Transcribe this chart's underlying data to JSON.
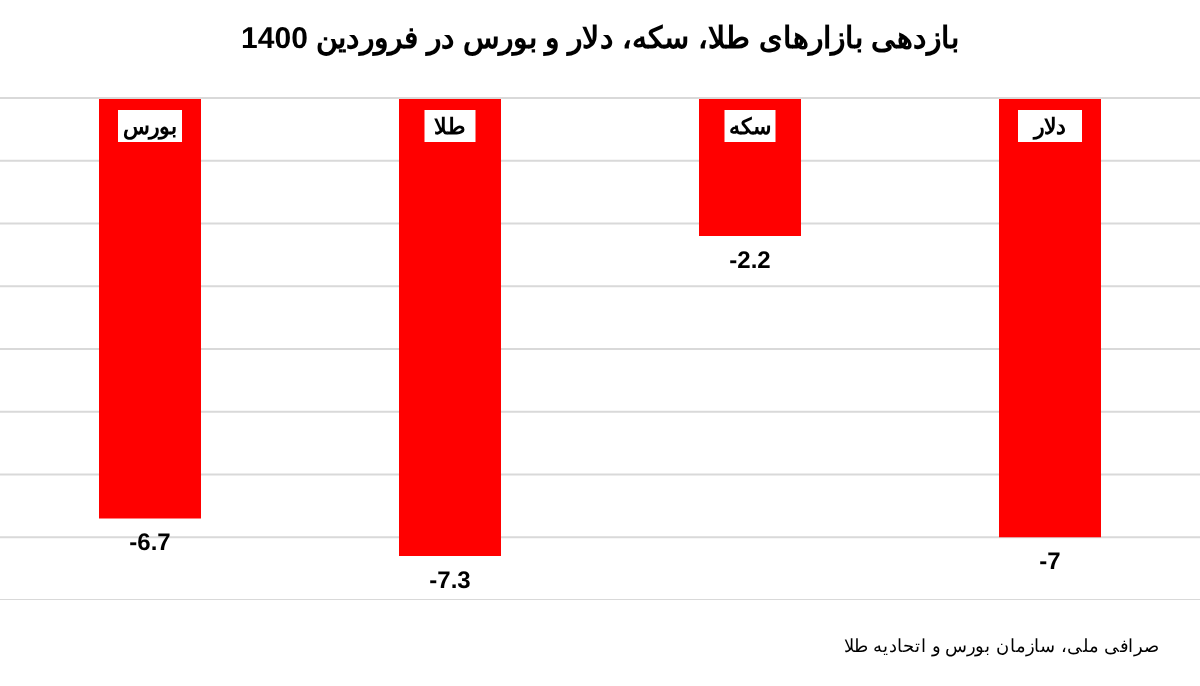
{
  "chart_data": {
    "type": "bar",
    "title": "بازدهی بازارهای طلا، سکه، دلار و بورس در فروردین 1400",
    "categories": [
      "بورس",
      "طلا",
      "سکه",
      "دلار"
    ],
    "values": [
      -6.7,
      -7.3,
      -2.2,
      -7
    ],
    "color": "#ff0000",
    "ylim": [
      -8,
      0
    ],
    "yticks": [
      {
        "value": -8,
        "label": null
      },
      {
        "value": -7,
        "label": null
      },
      {
        "value": -6,
        "label": null
      },
      {
        "value": -5,
        "label": null
      },
      {
        "value": -4,
        "label": null
      },
      {
        "value": -3,
        "label": null
      },
      {
        "value": -2,
        "label": null
      },
      {
        "value": -1,
        "label": null
      },
      {
        "value": 0,
        "label": null
      }
    ],
    "tick_labels": "x",
    "grid": "y",
    "data_labels": true,
    "annotations": [
      "صرافی ملی، سازمان بورس و اتحادیه طلا"
    ]
  }
}
